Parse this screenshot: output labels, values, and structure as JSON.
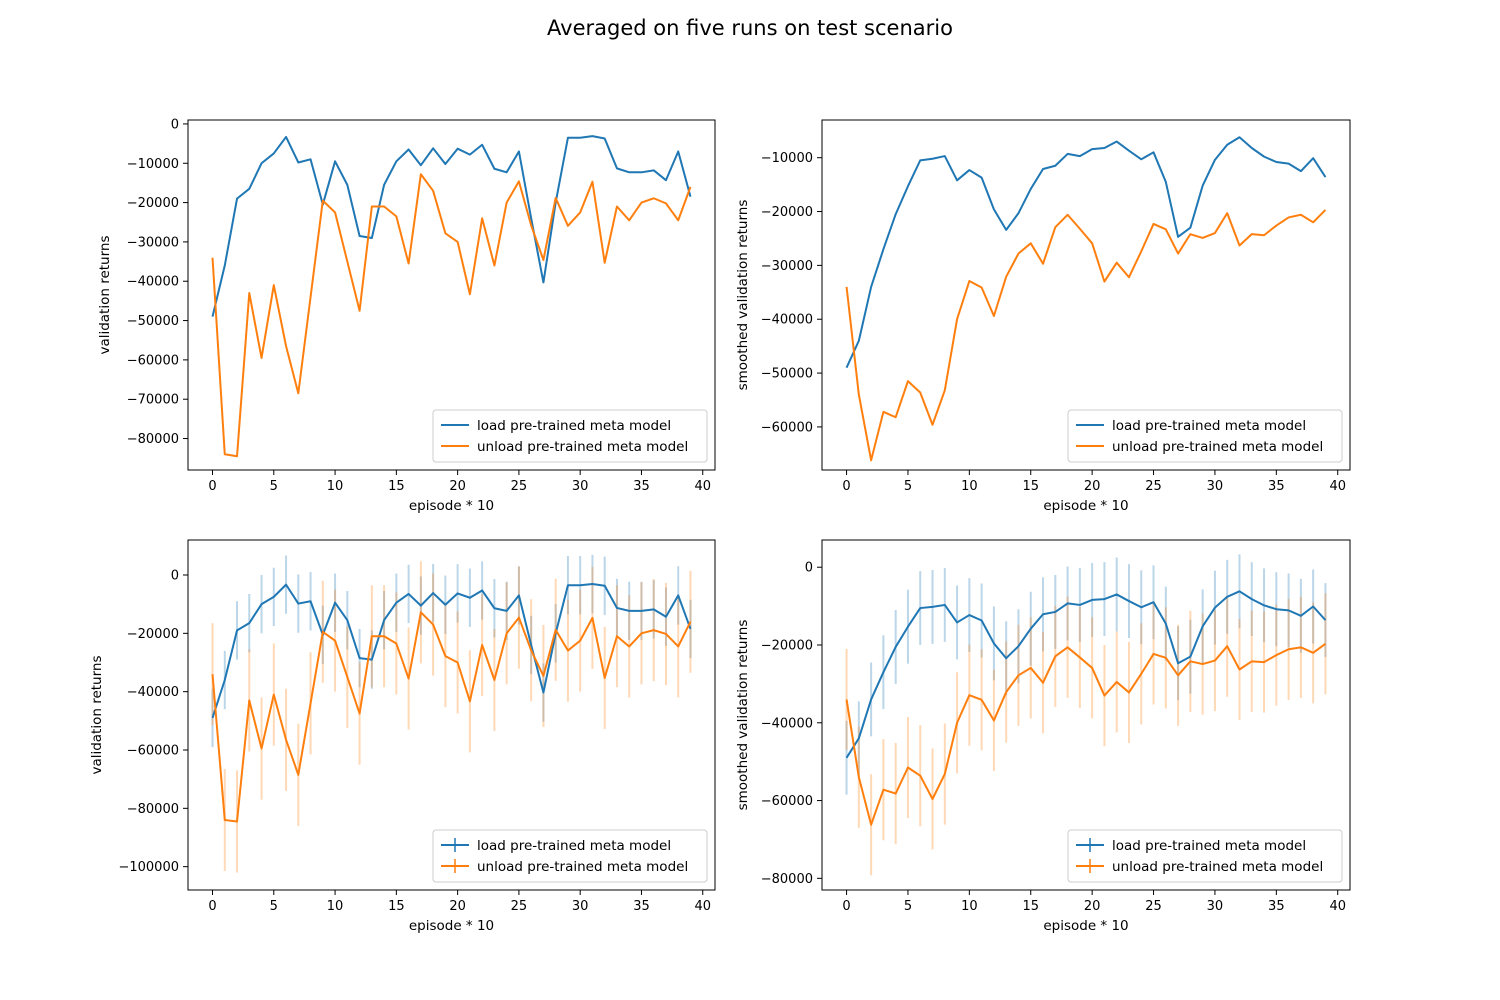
{
  "figure": {
    "title": "Averaged on five runs on test scenario"
  },
  "colors": {
    "load": "#1f77b4",
    "unload": "#ff7f0e",
    "axis": "#000000",
    "legend_border": "#cccccc"
  },
  "chart_data": [
    {
      "type": "line",
      "position": "top-left",
      "xlabel": "episode * 10",
      "ylabel": "validation returns",
      "xlim": [
        -2,
        41
      ],
      "ylim": [
        -88000,
        1000
      ],
      "xticks": [
        0,
        5,
        10,
        15,
        20,
        25,
        30,
        35,
        40
      ],
      "yticks": [
        0,
        -10000,
        -20000,
        -30000,
        -40000,
        -50000,
        -60000,
        -70000,
        -80000
      ],
      "error_bars": false,
      "legend": "lower right",
      "series": [
        {
          "name": "load pre-trained meta model",
          "key": "load",
          "y": [
            -49000,
            -36000,
            -19000,
            -16500,
            -10000,
            -7500,
            -3300,
            -9800,
            -9000,
            -20500,
            -9500,
            -15500,
            -28500,
            -29000,
            -15500,
            -9500,
            -6500,
            -10500,
            -6200,
            -10200,
            -6300,
            -7800,
            -5300,
            -11400,
            -12300,
            -7000,
            -24000,
            -40300,
            -20000,
            -3500,
            -3500,
            -3100,
            -3700,
            -11300,
            -12300,
            -12300,
            -11800,
            -14300,
            -7000,
            -18500
          ]
        },
        {
          "name": "unload pre-trained meta model",
          "key": "unload",
          "y": [
            -34000,
            -84000,
            -84500,
            -43000,
            -59500,
            -41000,
            -56500,
            -68500,
            -44000,
            -19500,
            -22500,
            -35000,
            -47500,
            -21000,
            -21000,
            -23500,
            -35500,
            -12800,
            -17000,
            -27800,
            -30000,
            -43300,
            -24000,
            -36000,
            -20000,
            -14600,
            -25800,
            -34600,
            -18800,
            -25900,
            -22500,
            -14700,
            -35300,
            -21000,
            -24500,
            -20000,
            -18900,
            -20200,
            -24500,
            -16000
          ]
        }
      ]
    },
    {
      "type": "line",
      "position": "top-right",
      "xlabel": "episode * 10",
      "ylabel": "smoothed validation returns",
      "xlim": [
        -2,
        41
      ],
      "ylim": [
        -68000,
        -3000
      ],
      "xticks": [
        0,
        5,
        10,
        15,
        20,
        25,
        30,
        35,
        40
      ],
      "yticks": [
        -10000,
        -20000,
        -30000,
        -40000,
        -50000,
        -60000
      ],
      "error_bars": false,
      "legend": "lower right",
      "series": [
        {
          "name": "load pre-trained meta model",
          "key": "load",
          "y": [
            -49000,
            -44000,
            -34000,
            -27000,
            -20500,
            -15300,
            -10500,
            -10200,
            -9700,
            -14200,
            -12300,
            -13700,
            -19600,
            -23400,
            -20300,
            -15800,
            -12100,
            -11500,
            -9300,
            -9700,
            -8400,
            -8200,
            -7000,
            -8700,
            -10300,
            -9000,
            -14500,
            -24700,
            -23000,
            -15200,
            -10400,
            -7600,
            -6200,
            -8200,
            -9800,
            -10800,
            -11100,
            -12500,
            -10100,
            -13600
          ]
        },
        {
          "name": "unload pre-trained meta model",
          "key": "unload",
          "y": [
            -34000,
            -54000,
            -66200,
            -57200,
            -58200,
            -51500,
            -53600,
            -59600,
            -53200,
            -40000,
            -32900,
            -34100,
            -39400,
            -32100,
            -27800,
            -25900,
            -29700,
            -22900,
            -20600,
            -23200,
            -25900,
            -33000,
            -29500,
            -32200,
            -27400,
            -22300,
            -23300,
            -27800,
            -24200,
            -24900,
            -24000,
            -20300,
            -26300,
            -24200,
            -24400,
            -22600,
            -21100,
            -20600,
            -22000,
            -19700
          ]
        }
      ]
    },
    {
      "type": "line",
      "position": "bottom-left",
      "xlabel": "episode * 10",
      "ylabel": "validation returns",
      "xlim": [
        -2,
        41
      ],
      "ylim": [
        -108000,
        12000
      ],
      "xticks": [
        0,
        5,
        10,
        15,
        20,
        25,
        30,
        35,
        40
      ],
      "yticks": [
        0,
        -20000,
        -40000,
        -60000,
        -80000,
        -100000
      ],
      "error_bars": true,
      "legend": "lower right",
      "series": [
        {
          "name": "load pre-trained meta model",
          "key": "load",
          "y": [
            -49000,
            -36000,
            -19000,
            -16500,
            -10000,
            -7500,
            -3300,
            -9800,
            -9000,
            -20500,
            -9500,
            -15500,
            -28500,
            -29000,
            -15500,
            -9500,
            -6500,
            -10500,
            -6200,
            -10200,
            -6300,
            -7800,
            -5300,
            -11400,
            -12300,
            -7000,
            -24000,
            -40300,
            -20000,
            -3500,
            -3500,
            -3100,
            -3700,
            -11300,
            -12300,
            -12300,
            -11800,
            -14300,
            -7000,
            -18500
          ],
          "err": [
            10000,
            10000,
            10000,
            10000,
            10000,
            10000,
            10000,
            10000,
            10000,
            10000,
            10000,
            10000,
            10000,
            10000,
            10000,
            10000,
            10000,
            10000,
            10000,
            10000,
            10000,
            10000,
            10000,
            10000,
            10000,
            10000,
            10000,
            10000,
            10000,
            10000,
            10000,
            10000,
            10000,
            10000,
            10000,
            10000,
            10000,
            10000,
            10000,
            10000
          ]
        },
        {
          "name": "unload pre-trained meta model",
          "key": "unload",
          "y": [
            -34000,
            -84000,
            -84500,
            -43000,
            -59500,
            -41000,
            -56500,
            -68500,
            -44000,
            -19500,
            -22500,
            -35000,
            -47500,
            -21000,
            -21000,
            -23500,
            -35500,
            -12800,
            -17000,
            -27800,
            -30000,
            -43300,
            -24000,
            -36000,
            -20000,
            -14600,
            -25800,
            -34600,
            -18800,
            -25900,
            -22500,
            -14700,
            -35300,
            -21000,
            -24500,
            -20000,
            -18900,
            -20200,
            -24500,
            -16000
          ],
          "err": [
            17500,
            17500,
            17500,
            17500,
            17500,
            17500,
            17500,
            17500,
            17500,
            17500,
            17500,
            17500,
            17500,
            17500,
            17500,
            17500,
            17500,
            17500,
            17500,
            17500,
            17500,
            17500,
            17500,
            17500,
            17500,
            17500,
            17500,
            17500,
            17500,
            17500,
            17500,
            17500,
            17500,
            17500,
            17500,
            17500,
            17500,
            17500,
            17500,
            17500
          ]
        }
      ]
    },
    {
      "type": "line",
      "position": "bottom-right",
      "xlabel": "episode * 10",
      "ylabel": "smoothed validation returns",
      "xlim": [
        -2,
        41
      ],
      "ylim": [
        -83000,
        7000
      ],
      "xticks": [
        0,
        5,
        10,
        15,
        20,
        25,
        30,
        35,
        40
      ],
      "yticks": [
        0,
        -20000,
        -40000,
        -60000,
        -80000
      ],
      "error_bars": true,
      "legend": "lower right",
      "series": [
        {
          "name": "load pre-trained meta model",
          "key": "load",
          "y": [
            -49000,
            -44000,
            -34000,
            -27000,
            -20500,
            -15300,
            -10500,
            -10200,
            -9700,
            -14200,
            -12300,
            -13700,
            -19600,
            -23400,
            -20300,
            -15800,
            -12100,
            -11500,
            -9300,
            -9700,
            -8400,
            -8200,
            -7000,
            -8700,
            -10300,
            -9000,
            -14500,
            -24700,
            -23000,
            -15200,
            -10400,
            -7600,
            -6200,
            -8200,
            -9800,
            -10800,
            -11100,
            -12500,
            -10100,
            -13600
          ],
          "err": [
            9500,
            9500,
            9500,
            9500,
            9500,
            9500,
            9500,
            9500,
            9500,
            9500,
            9500,
            9500,
            9500,
            9500,
            9500,
            9500,
            9500,
            9500,
            9500,
            9500,
            9500,
            9500,
            9500,
            9500,
            9500,
            9500,
            9500,
            9500,
            9500,
            9500,
            9500,
            9500,
            9500,
            9500,
            9500,
            9500,
            9500,
            9500,
            9500,
            9500
          ]
        },
        {
          "name": "unload pre-trained meta model",
          "key": "unload",
          "y": [
            -34000,
            -54000,
            -66200,
            -57200,
            -58200,
            -51500,
            -53600,
            -59600,
            -53200,
            -40000,
            -32900,
            -34100,
            -39400,
            -32100,
            -27800,
            -25900,
            -29700,
            -22900,
            -20600,
            -23200,
            -25900,
            -33000,
            -29500,
            -32200,
            -27400,
            -22300,
            -23300,
            -27800,
            -24200,
            -24900,
            -24000,
            -20300,
            -26300,
            -24200,
            -24400,
            -22600,
            -21100,
            -20600,
            -22000,
            -19700
          ],
          "err": [
            13000,
            13000,
            13000,
            13000,
            13000,
            13000,
            13000,
            13000,
            13000,
            13000,
            13000,
            13000,
            13000,
            13000,
            13000,
            13000,
            13000,
            13000,
            13000,
            13000,
            13000,
            13000,
            13000,
            13000,
            13000,
            13000,
            13000,
            13000,
            13000,
            13000,
            13000,
            13000,
            13000,
            13000,
            13000,
            13000,
            13000,
            13000,
            13000,
            13000
          ]
        }
      ]
    }
  ]
}
